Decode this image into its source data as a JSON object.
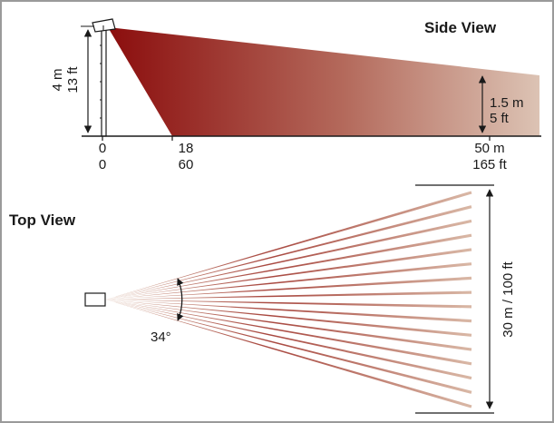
{
  "side_view": {
    "title": "Side View",
    "height_m": "4 m",
    "height_ft": "13 ft",
    "target_height_m": "1.5 m",
    "target_height_ft": "5 ft",
    "ticks": [
      {
        "m": "0",
        "ft": "0"
      },
      {
        "m": "18",
        "ft": "60"
      },
      {
        "m": "50 m",
        "ft": "165 ft"
      }
    ]
  },
  "top_view": {
    "title": "Top View",
    "angle": "34°",
    "width_label": "30 m / 100 ft"
  },
  "colors": {
    "beam_dark": "#8b0d0d",
    "beam_light": "#d9b8a6",
    "line": "#1a1a1a",
    "frame": "#9a9a9a"
  }
}
